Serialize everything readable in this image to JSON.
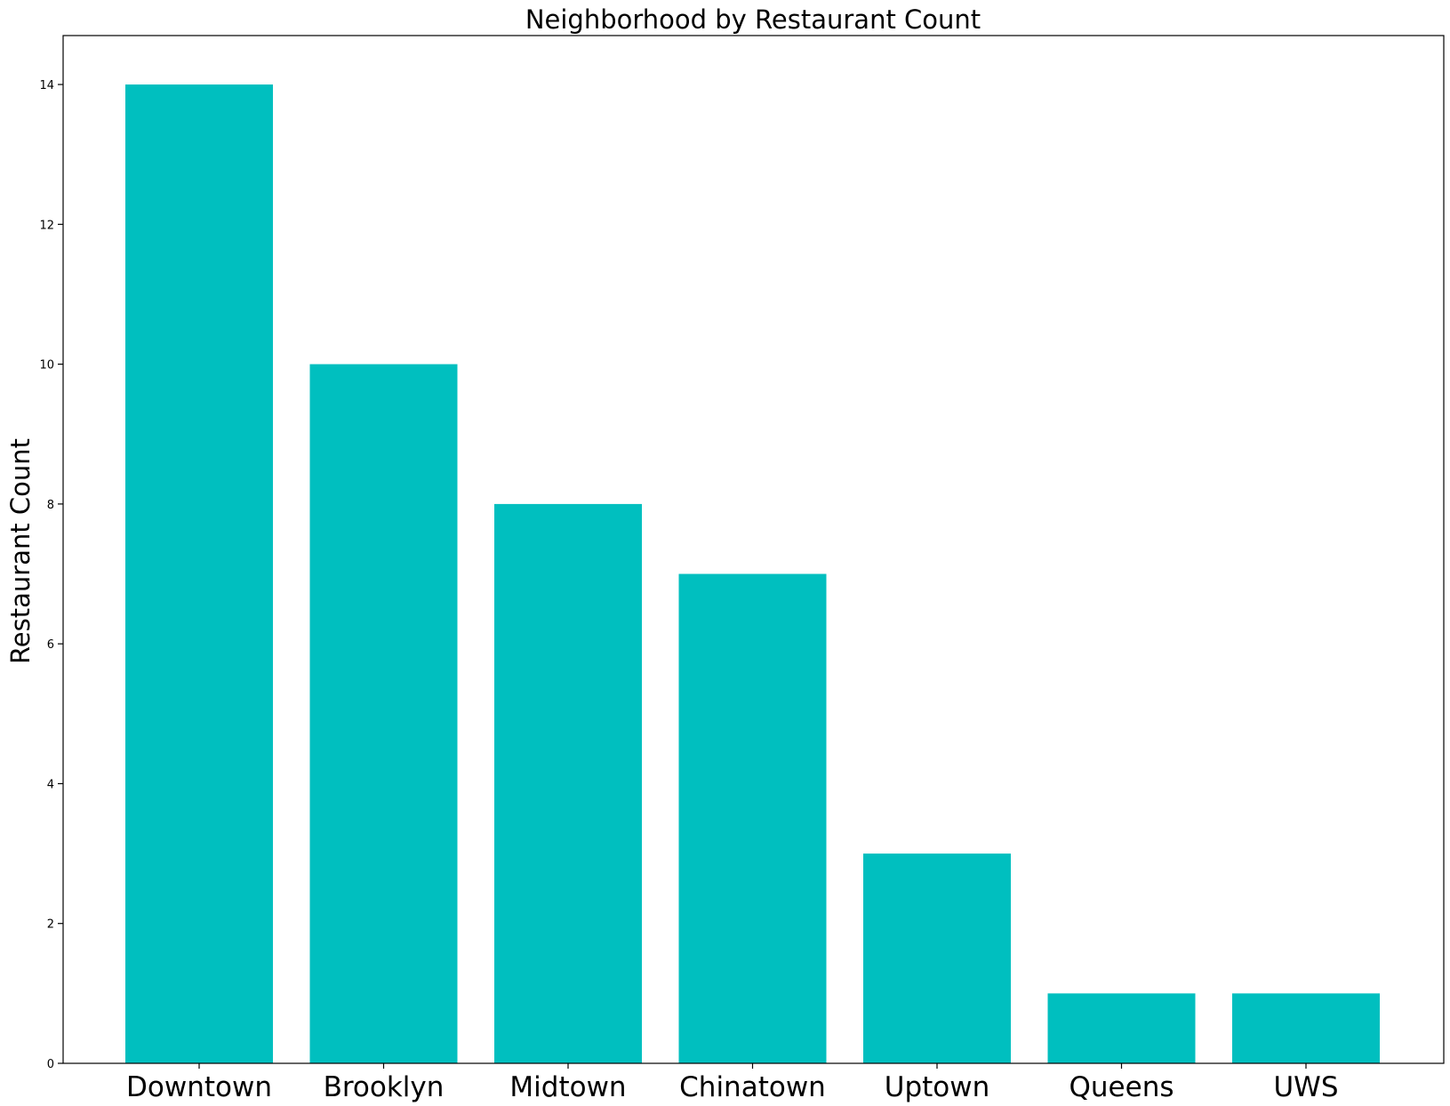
{
  "chart_data": {
    "type": "bar",
    "title": "Neighborhood by Restaurant Count",
    "xlabel": "",
    "ylabel": "Restaurant Count",
    "categories": [
      "Downtown",
      "Brooklyn",
      "Midtown",
      "Chinatown",
      "Uptown",
      "Queens",
      "UWS"
    ],
    "values": [
      14,
      10,
      8,
      7,
      3,
      1,
      1
    ],
    "ylim": [
      0,
      14.7
    ],
    "yticks": [
      0,
      2,
      4,
      6,
      8,
      10,
      12,
      14
    ],
    "grid": false,
    "bar_color": "#00BFBF",
    "legend": null
  }
}
